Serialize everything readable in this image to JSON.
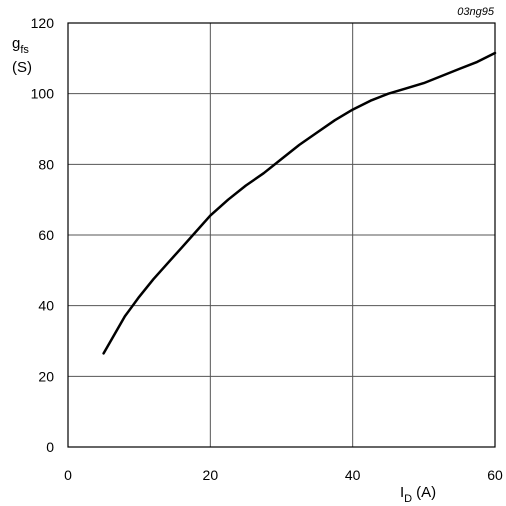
{
  "chart_data": {
    "type": "line",
    "code": "03ng95",
    "ylabel": {
      "main": "g",
      "sub": "fs",
      "unit": "(S)"
    },
    "xlabel": {
      "main": "I",
      "sub": "D",
      "unit": "(A)"
    },
    "xlim": [
      0,
      60
    ],
    "ylim": [
      0,
      120
    ],
    "x_ticks": [
      0,
      20,
      40,
      60
    ],
    "y_ticks": [
      0,
      20,
      40,
      60,
      80,
      100,
      120
    ],
    "grid": true,
    "series": [
      {
        "x": [
          5,
          6,
          7,
          8,
          10,
          12,
          14,
          16,
          18,
          20,
          22.5,
          25,
          27.5,
          30,
          32.5,
          35,
          37.5,
          40,
          42.5,
          45,
          47.5,
          50,
          52.5,
          55,
          57.5,
          60
        ],
        "y": [
          26.5,
          30,
          33.5,
          37,
          42.5,
          47.5,
          52,
          56.5,
          61,
          65.5,
          70,
          74,
          77.5,
          81.5,
          85.5,
          89,
          92.5,
          95.5,
          98,
          100,
          101.5,
          103,
          105,
          107,
          109,
          111.5
        ]
      }
    ]
  }
}
